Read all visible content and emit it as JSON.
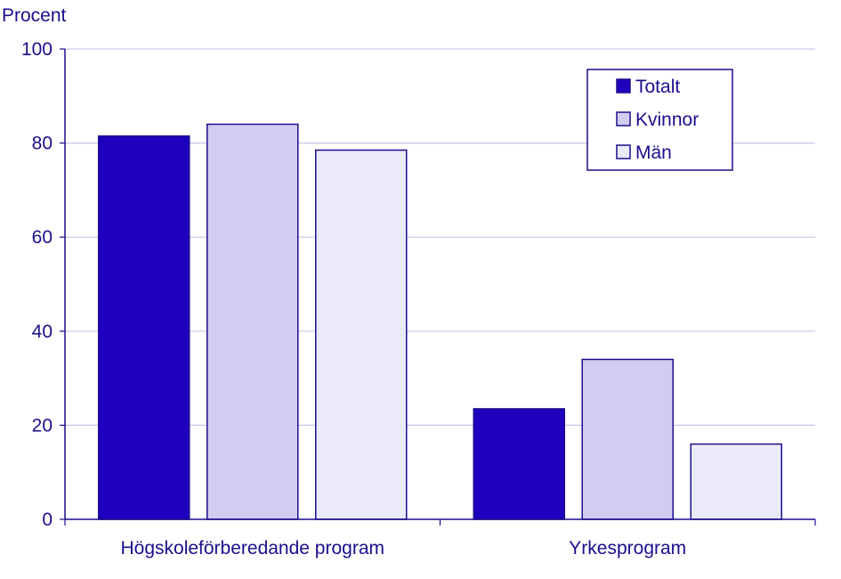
{
  "chart_data": {
    "type": "bar",
    "title": "",
    "ylabel": "Procent",
    "xlabel": "",
    "ylim": [
      0,
      100
    ],
    "yticks": [
      0,
      20,
      40,
      60,
      80,
      100
    ],
    "grid": true,
    "legend_position": "top-right",
    "categories": [
      "Högskoleförberedande program",
      "Yrkesprogram"
    ],
    "series": [
      {
        "name": "Totalt",
        "values": [
          81.5,
          23.5
        ],
        "color": "#1e00be"
      },
      {
        "name": "Kvinnor",
        "values": [
          84.0,
          34.0
        ],
        "color": "#d2cdf0"
      },
      {
        "name": "Män",
        "values": [
          78.5,
          16.0
        ],
        "color": "#ebeafa"
      }
    ],
    "colors": {
      "text": "#1a0f8c",
      "grid": "#c9c6ea",
      "bar_outline": "#1a0f8c"
    }
  }
}
